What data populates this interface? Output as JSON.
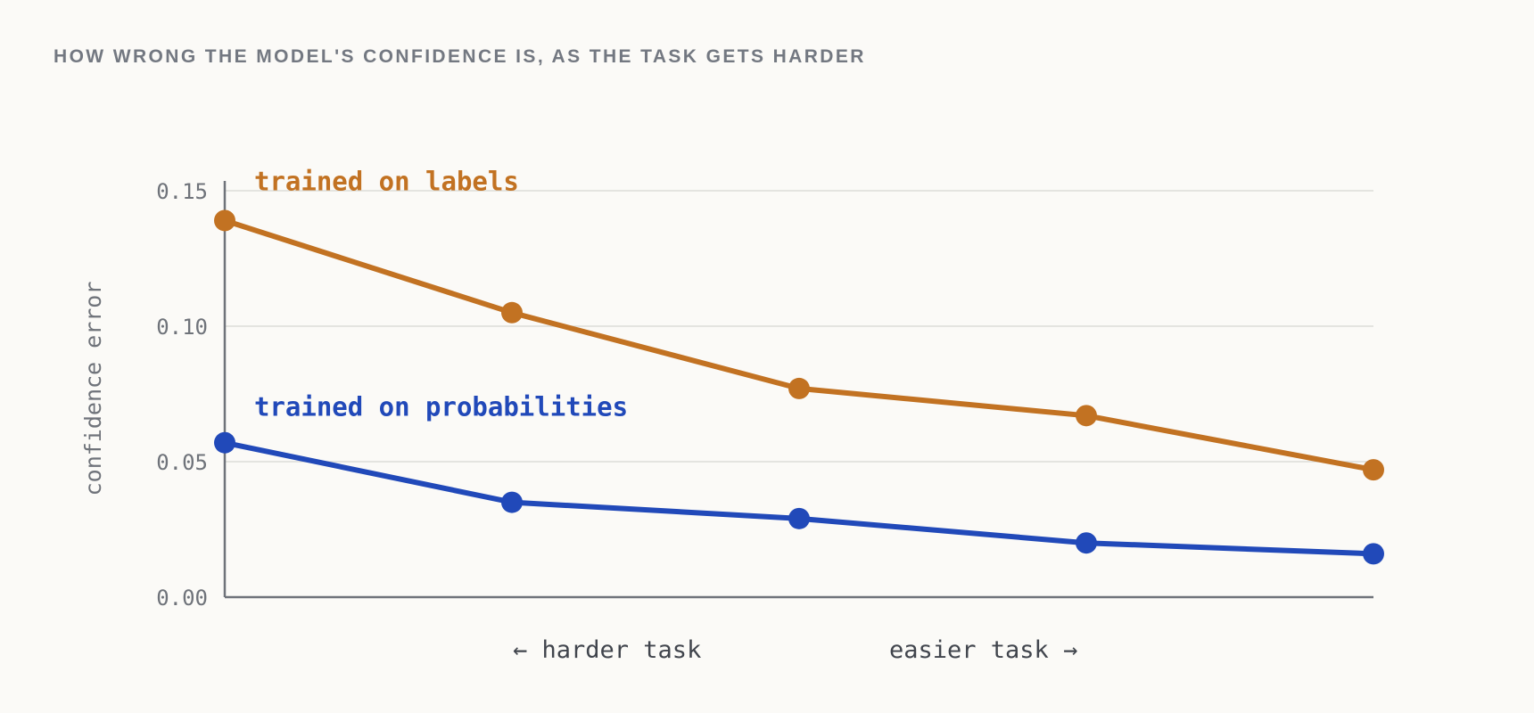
{
  "chart_data": {
    "type": "line",
    "title": "HOW WRONG THE MODEL'S CONFIDENCE IS, AS THE TASK GETS HARDER",
    "ylabel": "confidence error",
    "xlabel_left": "← harder task",
    "xlabel_right": "easier task →",
    "x": [
      1,
      2,
      3,
      4,
      5
    ],
    "xlim": [
      1,
      5
    ],
    "ylim": [
      0,
      0.15
    ],
    "yticks": [
      "0.00",
      "0.05",
      "0.10",
      "0.15"
    ],
    "ytick_values": [
      0,
      0.05,
      0.1,
      0.15
    ],
    "grid": true,
    "series": [
      {
        "name": "trained on labels",
        "color": "#c27222",
        "values": [
          0.139,
          0.105,
          0.077,
          0.067,
          0.047
        ]
      },
      {
        "name": "trained on probabilities",
        "color": "#2149b9",
        "values": [
          0.057,
          0.035,
          0.029,
          0.02,
          0.016
        ]
      }
    ]
  }
}
